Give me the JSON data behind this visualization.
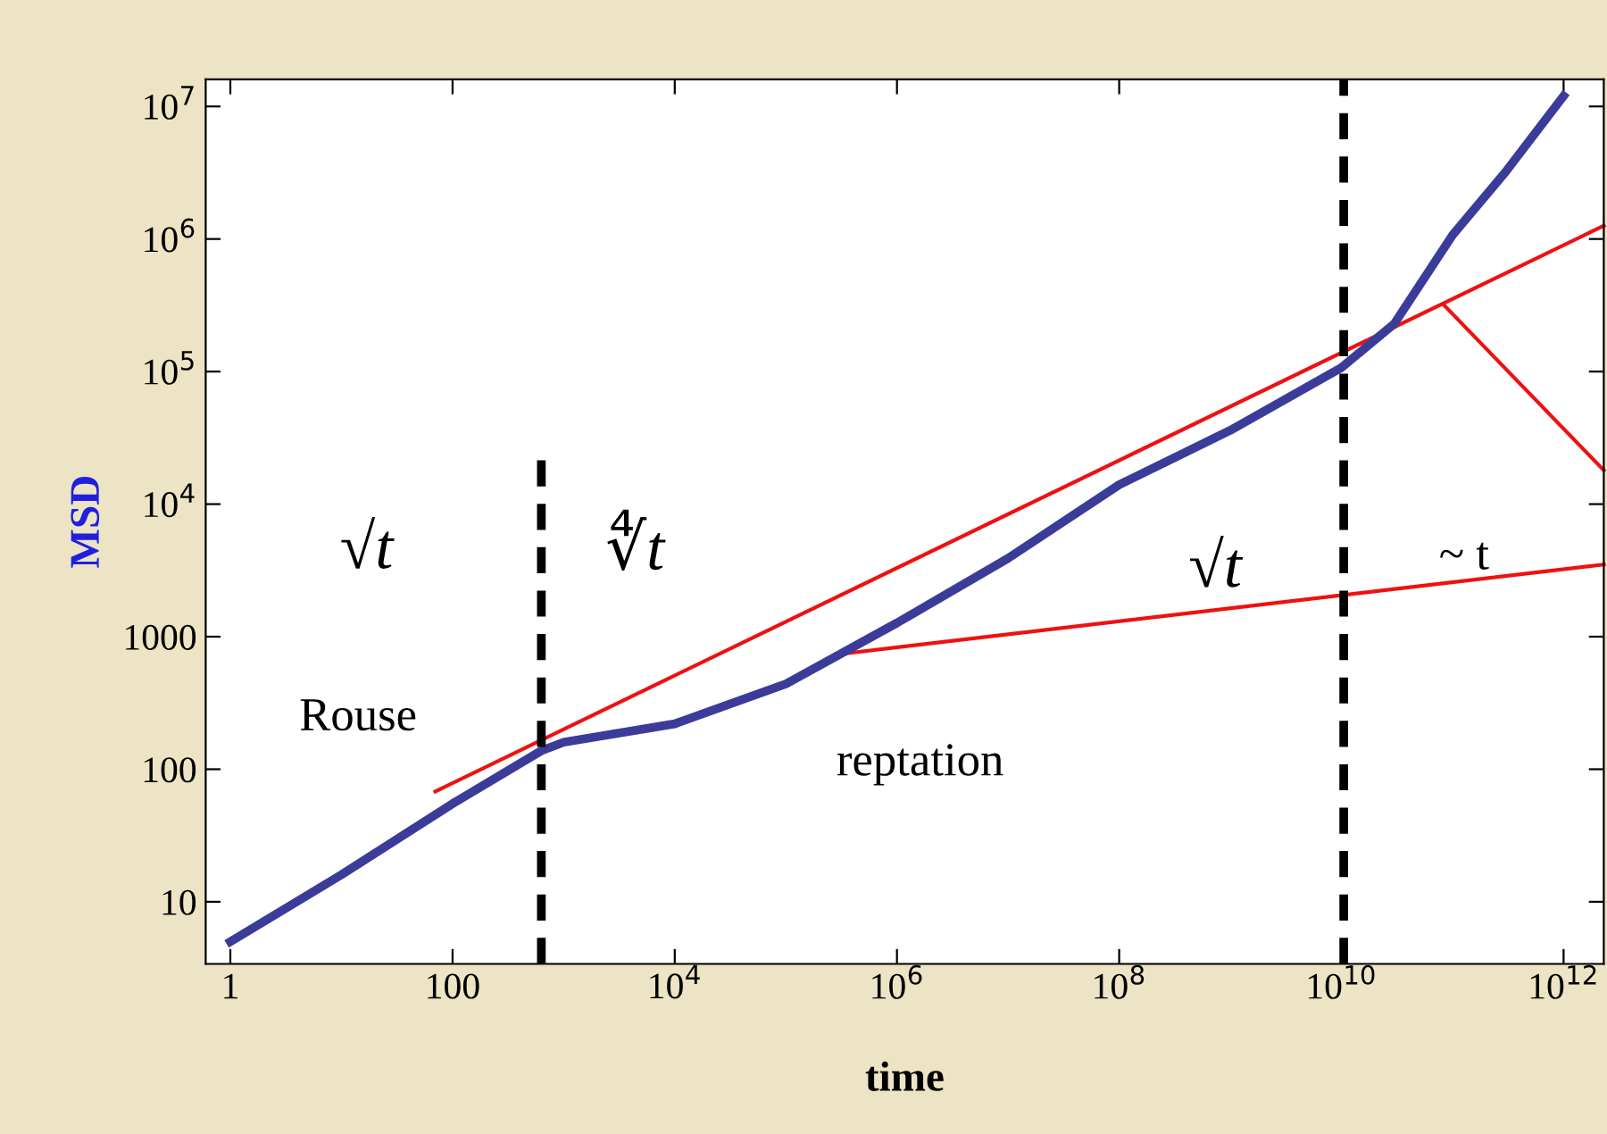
{
  "chart_data": {
    "type": "line",
    "xlabel": "time",
    "ylabel": "MSD",
    "log": "xy",
    "grid": false,
    "legend": false,
    "xlim": [
      0.6,
      2300000000000.0
    ],
    "ylim": [
      3.4,
      16000000.0
    ],
    "xticks": [
      1,
      100,
      {
        "value": 10000,
        "label": "10$^{4}$"
      },
      {
        "value": 1000000,
        "label": "10$^{6}$"
      },
      {
        "value": 100000000,
        "label": "10$^{8}$"
      },
      {
        "value": 10000000000,
        "label": "10$^{10}$"
      },
      {
        "value": 1000000000000,
        "label": "10$^{12}$"
      }
    ],
    "yticks": [
      10,
      100,
      1000,
      {
        "value": 10000,
        "label": "10$^{4}$"
      },
      {
        "value": 100000,
        "label": "10$^{5}$"
      },
      {
        "value": 1000000,
        "label": "10$^{6}$"
      },
      {
        "value": 10000000,
        "label": "10$^{7}$"
      }
    ],
    "series": [
      {
        "color": "#ee1111",
        "x": [
          70,
          2300000000000.0
        ],
        "values": [
          68,
          1260000
        ]
      },
      {
        "color": "#ee1111",
        "x": [
          310000,
          2300000000000.0
        ],
        "values": [
          740,
          3500
        ]
      },
      {
        "color": "#ee1111",
        "x": [
          83000000000,
          2300000000000.0
        ],
        "values": [
          320000,
          18000
        ]
      },
      {
        "color": "#3b3b9a",
        "x": [
          1,
          10,
          100,
          630,
          1000,
          10000,
          100000,
          1000000,
          10000000,
          100000000,
          1000000000,
          10000000000,
          30000000000,
          100000000000,
          300000000000,
          1000000000000
        ],
        "values": [
          5,
          16,
          55,
          138,
          160,
          220,
          440,
          1270,
          3900,
          14000,
          36000,
          107000,
          230000,
          1070000,
          3200000,
          12000000
        ]
      },
      {
        "color": "#000000",
        "line_style": "dashed",
        "x": [
          630,
          630
        ],
        "values": [
          3.4,
          24000
        ]
      }
    ],
    "ref_lines": [
      {
        "axis": "x",
        "value": 10500000000,
        "color": "#000000",
        "line_style": "dashed"
      }
    ],
    "annotations": [
      "√t",
      "∜t",
      "√t",
      "~ t",
      "Rouse",
      "reptation"
    ]
  }
}
